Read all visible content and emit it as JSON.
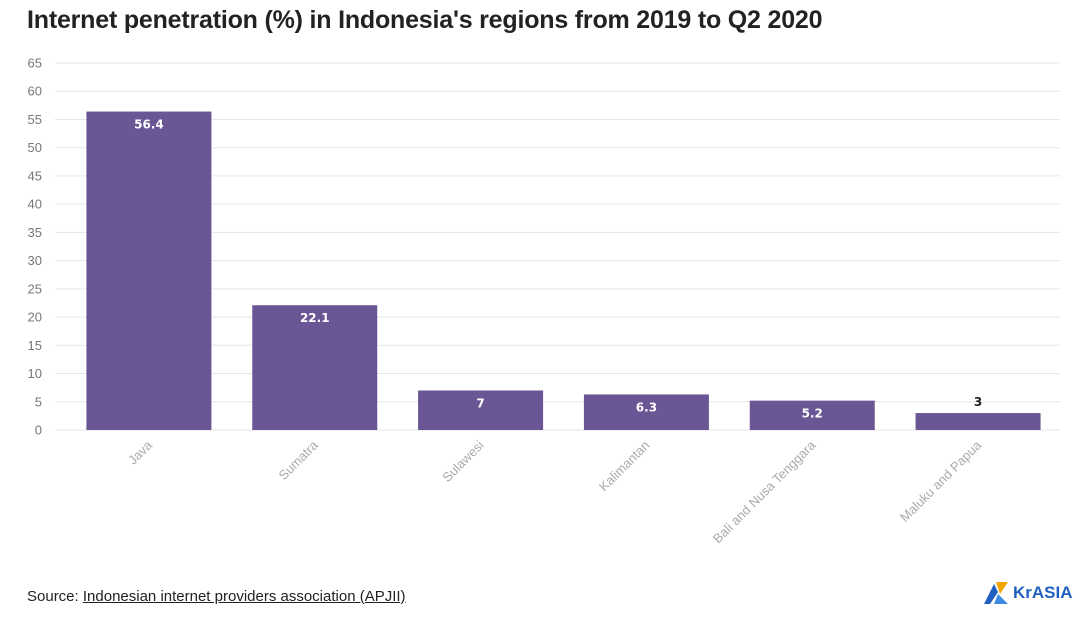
{
  "title": "Internet penetration (%) in Indonesia's regions from 2019 to Q2 2020",
  "source": {
    "prefix": "Source: ",
    "link_text": "Indonesian internet providers association (APJII)"
  },
  "logo": {
    "text": "KrASIA"
  },
  "colors": {
    "bar": "#6a5694",
    "grid": "#e6e6e6",
    "label_inside": "#ffffff",
    "label_outside": "#222222"
  },
  "chart_data": {
    "type": "bar",
    "title": "Internet penetration (%) in Indonesia's regions from 2019 to Q2 2020",
    "xlabel": "",
    "ylabel": "",
    "categories": [
      "Java",
      "Sumatra",
      "Sulawesi",
      "Kalimantan",
      "Bali and Nusa Tenggara",
      "Maluku and Papua"
    ],
    "values": [
      56.4,
      22.1,
      7,
      6.3,
      5.2,
      3
    ],
    "data_labels": [
      "56.4",
      "22.1",
      "7",
      "6.3",
      "5.2",
      "3"
    ],
    "ylim": [
      0,
      65
    ],
    "yticks": [
      0,
      5,
      10,
      15,
      20,
      25,
      30,
      35,
      40,
      45,
      50,
      55,
      60,
      65
    ],
    "grid": true,
    "legend": "none"
  }
}
